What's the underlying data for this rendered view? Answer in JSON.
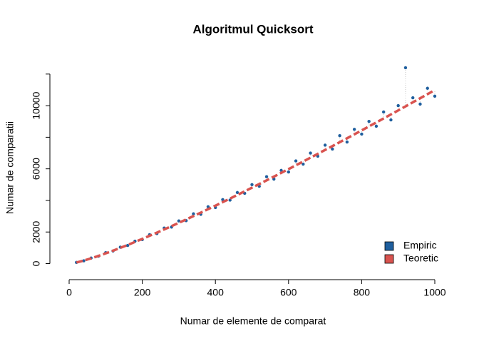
{
  "chart_data": {
    "type": "scatter",
    "title": "Algoritmul Quicksort",
    "x_label": "Numar de elemente de comparat",
    "y_label": "Numar de comparatii",
    "x": [
      20,
      40,
      60,
      80,
      100,
      120,
      140,
      160,
      180,
      200,
      220,
      240,
      260,
      280,
      300,
      320,
      340,
      360,
      380,
      400,
      420,
      440,
      460,
      480,
      500,
      520,
      540,
      560,
      580,
      600,
      620,
      640,
      660,
      680,
      700,
      720,
      740,
      760,
      780,
      800,
      820,
      840,
      860,
      880,
      900,
      920,
      940,
      960,
      980,
      1000
    ],
    "series": [
      {
        "name": "Empiric",
        "color": "#1f5f9e",
        "kind": "points",
        "values": [
          75,
          180,
          350,
          470,
          690,
          800,
          1040,
          1150,
          1420,
          1520,
          1830,
          1900,
          2250,
          2310,
          2700,
          2720,
          3150,
          3120,
          3600,
          3550,
          4050,
          4020,
          4500,
          4450,
          5000,
          4900,
          5500,
          5350,
          5900,
          5800,
          6500,
          6300,
          7000,
          6800,
          7500,
          7250,
          8100,
          7700,
          8500,
          8200,
          9000,
          8700,
          9600,
          9100,
          10000,
          12400,
          10500,
          10100,
          11100,
          10600
        ]
      },
      {
        "name": "Teoretic",
        "color": "#d9534f",
        "kind": "line",
        "values": [
          71,
          191,
          331,
          484,
          648,
          819,
          997,
          1181,
          1370,
          1563,
          1760,
          1961,
          2165,
          2372,
          2582,
          2795,
          3010,
          3228,
          3447,
          3669,
          3892,
          4119,
          4346,
          4575,
          4807,
          5039,
          5273,
          5509,
          5745,
          5984,
          6224,
          6464,
          6707,
          6950,
          7195,
          7440,
          7688,
          7935,
          8184,
          8435,
          8685,
          8937,
          9191,
          9445,
          9699,
          9954,
          10212,
          10469,
          10728,
          10985
        ]
      }
    ],
    "xlim": [
      -39,
      1039
    ],
    "xticks": [
      0,
      200,
      400,
      600,
      800,
      1000
    ],
    "ylim": [
      -700,
      12850
    ],
    "yticks": [
      0,
      2000,
      6000,
      10000
    ],
    "ytick_marks": [
      0,
      2000,
      4000,
      6000,
      8000,
      10000,
      12000
    ],
    "legend": "bottomright",
    "grid": false
  }
}
